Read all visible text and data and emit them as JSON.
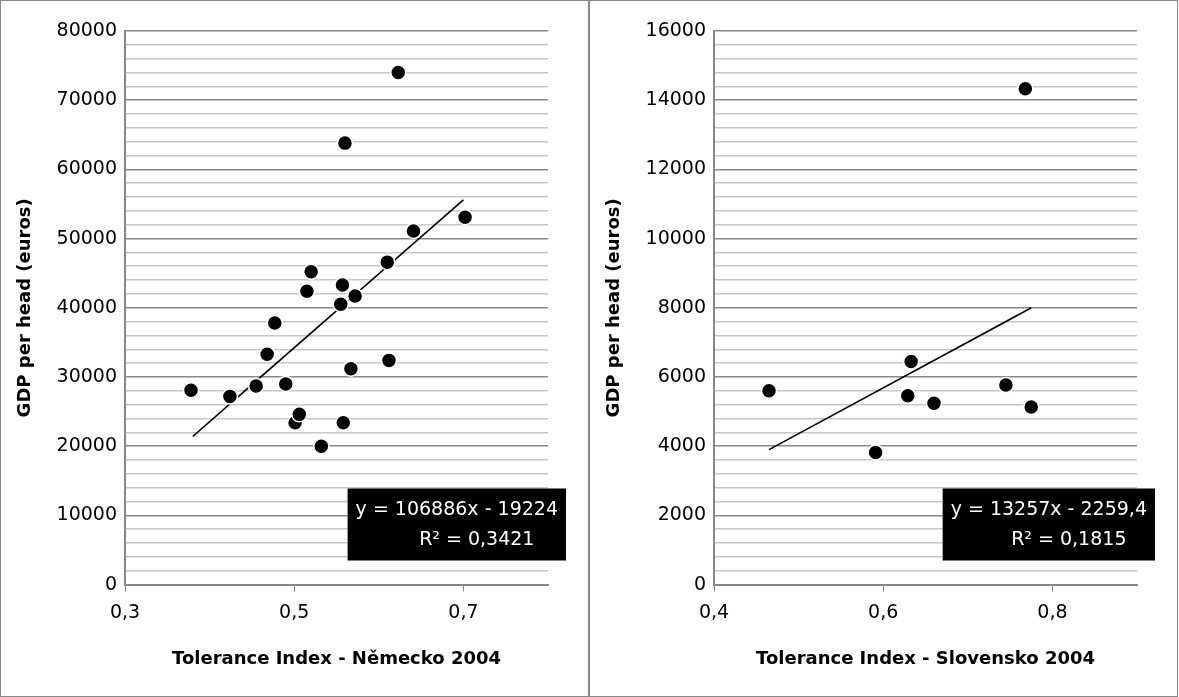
{
  "chart_data": [
    {
      "type": "scatter",
      "xlabel": "Tolerance Index - Německo 2004",
      "ylabel": "GDP per head (euros)",
      "xlim": [
        0.3,
        0.8
      ],
      "xticks": [
        {
          "value": 0.3,
          "label": "0,3"
        },
        {
          "value": 0.5,
          "label": "0,5"
        },
        {
          "value": 0.7,
          "label": "0,7"
        }
      ],
      "ylim": [
        0,
        80000
      ],
      "yticks": [
        0,
        {
          "value": 2000,
          "label": null
        },
        {
          "value": 4000,
          "label": null
        },
        {
          "value": 6000,
          "label": null
        },
        {
          "value": 8000,
          "label": null
        },
        10000,
        {
          "value": 12000,
          "label": null
        },
        {
          "value": 14000,
          "label": null
        },
        {
          "value": 16000,
          "label": null
        },
        {
          "value": 18000,
          "label": null
        },
        20000,
        {
          "value": 22000,
          "label": null
        },
        {
          "value": 24000,
          "label": null
        },
        {
          "value": 26000,
          "label": null
        },
        {
          "value": 28000,
          "label": null
        },
        30000,
        {
          "value": 32000,
          "label": null
        },
        {
          "value": 34000,
          "label": null
        },
        {
          "value": 36000,
          "label": null
        },
        {
          "value": 38000,
          "label": null
        },
        40000,
        {
          "value": 42000,
          "label": null
        },
        {
          "value": 44000,
          "label": null
        },
        {
          "value": 46000,
          "label": null
        },
        {
          "value": 48000,
          "label": null
        },
        50000,
        {
          "value": 52000,
          "label": null
        },
        {
          "value": 54000,
          "label": null
        },
        {
          "value": 56000,
          "label": null
        },
        {
          "value": 58000,
          "label": null
        },
        60000,
        {
          "value": 62000,
          "label": null
        },
        {
          "value": 64000,
          "label": null
        },
        {
          "value": 66000,
          "label": null
        },
        {
          "value": 68000,
          "label": null
        },
        70000,
        {
          "value": 72000,
          "label": null
        },
        {
          "value": 74000,
          "label": null
        },
        {
          "value": 76000,
          "label": null
        },
        {
          "value": 78000,
          "label": null
        },
        80000
      ],
      "grid": "y",
      "legend": false,
      "series": [
        {
          "marker": "circle",
          "color": "#000000",
          "x": [
            0.378,
            0.424,
            0.455,
            0.468,
            0.477,
            0.49,
            0.501,
            0.506,
            0.515,
            0.52,
            0.532,
            0.555,
            0.557,
            0.558,
            0.56,
            0.567,
            0.572,
            0.61,
            0.612,
            0.623,
            0.641,
            0.702
          ],
          "values": [
            28100,
            27200,
            28700,
            33300,
            37800,
            29000,
            23400,
            24600,
            42400,
            45200,
            20000,
            40500,
            43300,
            23400,
            63800,
            31200,
            41700,
            46600,
            32400,
            74000,
            51100,
            53100
          ]
        },
        {
          "type": "line",
          "color": "#000000",
          "x": [
            0.38,
            0.7
          ],
          "values": [
            21400,
            55600
          ]
        }
      ],
      "annotations": [
        "y = 106886x - 19224",
        "R² = 0,3421"
      ]
    },
    {
      "type": "scatter",
      "xlabel": "Tolerance Index - Slovensko 2004",
      "ylabel": "GDP per head (euros)",
      "xlim": [
        0.4,
        0.9
      ],
      "xticks": [
        {
          "value": 0.4,
          "label": "0,4"
        },
        {
          "value": 0.6,
          "label": "0,6"
        },
        {
          "value": 0.8,
          "label": "0,8"
        }
      ],
      "ylim": [
        0,
        16000
      ],
      "yticks": [
        0,
        {
          "value": 400,
          "label": null
        },
        {
          "value": 800,
          "label": null
        },
        {
          "value": 1200,
          "label": null
        },
        {
          "value": 1600,
          "label": null
        },
        2000,
        {
          "value": 2400,
          "label": null
        },
        {
          "value": 2800,
          "label": null
        },
        {
          "value": 3200,
          "label": null
        },
        {
          "value": 3600,
          "label": null
        },
        4000,
        {
          "value": 4400,
          "label": null
        },
        {
          "value": 4800,
          "label": null
        },
        {
          "value": 5200,
          "label": null
        },
        {
          "value": 5600,
          "label": null
        },
        6000,
        {
          "value": 6400,
          "label": null
        },
        {
          "value": 6800,
          "label": null
        },
        {
          "value": 7200,
          "label": null
        },
        {
          "value": 7600,
          "label": null
        },
        8000,
        {
          "value": 8400,
          "label": null
        },
        {
          "value": 8800,
          "label": null
        },
        {
          "value": 9200,
          "label": null
        },
        {
          "value": 9600,
          "label": null
        },
        10000,
        {
          "value": 10400,
          "label": null
        },
        {
          "value": 10800,
          "label": null
        },
        {
          "value": 11200,
          "label": null
        },
        {
          "value": 11600,
          "label": null
        },
        12000,
        {
          "value": 12400,
          "label": null
        },
        {
          "value": 12800,
          "label": null
        },
        {
          "value": 13200,
          "label": null
        },
        {
          "value": 13600,
          "label": null
        },
        14000,
        {
          "value": 14400,
          "label": null
        },
        {
          "value": 14800,
          "label": null
        },
        {
          "value": 15200,
          "label": null
        },
        {
          "value": 15600,
          "label": null
        },
        16000
      ],
      "grid": "y",
      "legend": false,
      "series": [
        {
          "marker": "circle",
          "color": "#000000",
          "x": [
            0.465,
            0.591,
            0.629,
            0.633,
            0.66,
            0.745,
            0.768,
            0.775
          ],
          "values": [
            5600,
            3820,
            5460,
            6450,
            5240,
            5770,
            14330,
            5130
          ]
        },
        {
          "type": "line",
          "color": "#000000",
          "x": [
            0.465,
            0.775
          ],
          "values": [
            3900,
            8000
          ]
        }
      ],
      "annotations": [
        "y = 13257x - 2259,4",
        "R² = 0,1815"
      ]
    }
  ]
}
